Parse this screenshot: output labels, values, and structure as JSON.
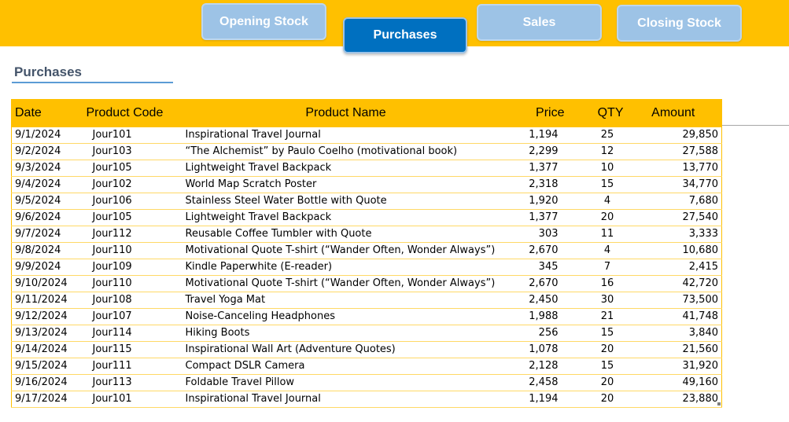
{
  "nav": {
    "opening_stock": "Opening Stock",
    "purchases": "Purchases",
    "sales": "Sales",
    "closing_stock": "Closing Stock",
    "active": "purchases"
  },
  "section": {
    "title": "Purchases"
  },
  "colors": {
    "band": "#FFC000",
    "nav_active": "#0070C0",
    "nav_inactive": "#9DC3E6",
    "title": "#44546A",
    "underline": "#5B9BD5",
    "row_border": "#FFD966"
  },
  "table": {
    "headers": [
      "Date",
      "Product Code",
      "Product Name",
      "Price",
      "QTY",
      "Amount"
    ],
    "rows": [
      [
        "9/1/2024",
        "Jour101",
        "Inspirational Travel Journal",
        "1,194",
        "25",
        "29,850"
      ],
      [
        "9/2/2024",
        "Jour103",
        "“The Alchemist” by Paulo Coelho (motivational book)",
        "2,299",
        "12",
        "27,588"
      ],
      [
        "9/3/2024",
        "Jour105",
        "Lightweight Travel Backpack",
        "1,377",
        "10",
        "13,770"
      ],
      [
        "9/4/2024",
        "Jour102",
        "World Map Scratch Poster",
        "2,318",
        "15",
        "34,770"
      ],
      [
        "9/5/2024",
        "Jour106",
        "Stainless Steel Water Bottle with Quote",
        "1,920",
        "4",
        "7,680"
      ],
      [
        "9/6/2024",
        "Jour105",
        "Lightweight Travel Backpack",
        "1,377",
        "20",
        "27,540"
      ],
      [
        "9/7/2024",
        "Jour112",
        "Reusable Coffee Tumbler with Quote",
        "303",
        "11",
        "3,333"
      ],
      [
        "9/8/2024",
        "Jour110",
        "Motivational Quote T-shirt (“Wander Often, Wonder Always”)",
        "2,670",
        "4",
        "10,680"
      ],
      [
        "9/9/2024",
        "Jour109",
        "Kindle Paperwhite (E-reader)",
        "345",
        "7",
        "2,415"
      ],
      [
        "9/10/2024",
        "Jour110",
        "Motivational Quote T-shirt (“Wander Often, Wonder Always”)",
        "2,670",
        "16",
        "42,720"
      ],
      [
        "9/11/2024",
        "Jour108",
        "Travel Yoga Mat",
        "2,450",
        "30",
        "73,500"
      ],
      [
        "9/12/2024",
        "Jour107",
        "Noise-Canceling Headphones",
        "1,988",
        "21",
        "41,748"
      ],
      [
        "9/13/2024",
        "Jour114",
        "Hiking Boots",
        "256",
        "15",
        "3,840"
      ],
      [
        "9/14/2024",
        "Jour115",
        "Inspirational Wall Art (Adventure Quotes)",
        "1,078",
        "20",
        "21,560"
      ],
      [
        "9/15/2024",
        "Jour111",
        "Compact DSLR Camera",
        "2,128",
        "15",
        "31,920"
      ],
      [
        "9/16/2024",
        "Jour113",
        "Foldable Travel Pillow",
        "2,458",
        "20",
        "49,160"
      ],
      [
        "9/17/2024",
        "Jour101",
        "Inspirational Travel Journal",
        "1,194",
        "20",
        "23,880"
      ]
    ]
  }
}
